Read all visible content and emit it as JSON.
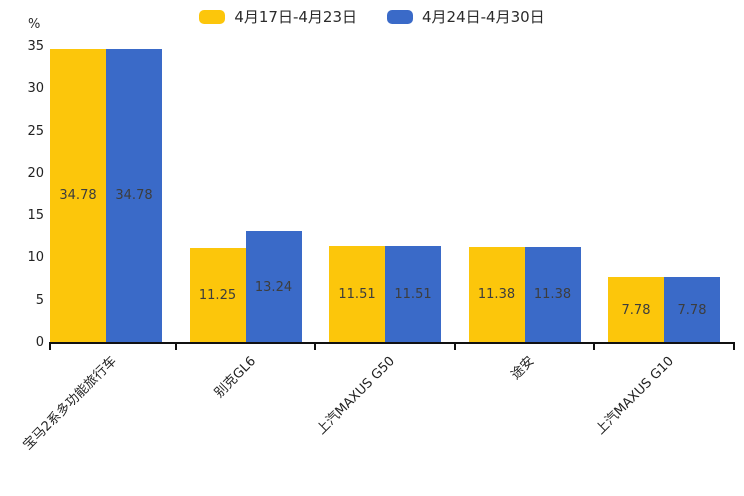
{
  "chart": {
    "unit_label": "%"
  },
  "chart_data": {
    "type": "bar",
    "title": "",
    "xlabel": "",
    "ylabel": "%",
    "categories": [
      "宝马2系多功能旅行车",
      "别克GL6",
      "上汽MAXUS G50",
      "途安",
      "上汽MAXUS G10"
    ],
    "series": [
      {
        "name": "4月17日-4月23日",
        "color": "#FCC60B",
        "values": [
          34.78,
          11.25,
          11.51,
          11.38,
          7.78
        ]
      },
      {
        "name": "4月24日-4月30日",
        "color": "#3A6AC8",
        "values": [
          34.78,
          13.24,
          11.51,
          11.38,
          7.78
        ]
      }
    ],
    "value_labels": [
      [
        "34.78",
        "11.25",
        "11.51",
        "11.38",
        "7.78"
      ],
      [
        "34.78",
        "13.24",
        "11.51",
        "11.38",
        "7.78"
      ]
    ],
    "ylim": [
      0,
      35
    ],
    "yticks": [
      0,
      5,
      10,
      15,
      20,
      25,
      30,
      35
    ],
    "grid": false,
    "legend_position": "top",
    "bar_label_position": "inside-center",
    "x_label_rotation_deg": 45
  }
}
